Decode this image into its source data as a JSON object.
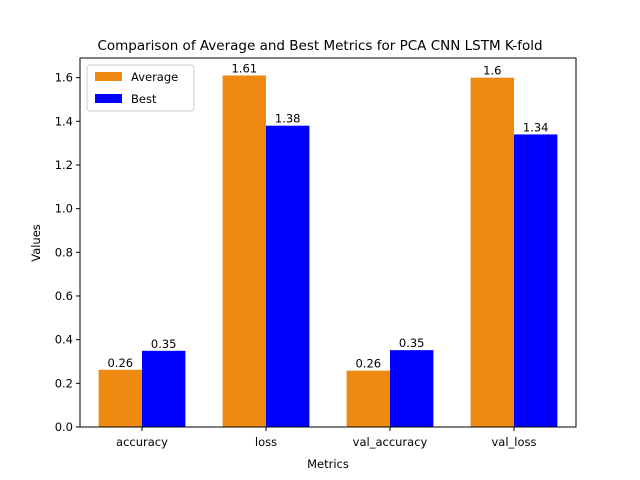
{
  "chart_data": {
    "type": "bar",
    "title": "Comparison of Average and Best Metrics for PCA CNN LSTM K-fold",
    "xlabel": "Metrics",
    "ylabel": "Values",
    "categories": [
      "accuracy",
      "loss",
      "val_accuracy",
      "val_loss"
    ],
    "series": [
      {
        "name": "Average",
        "color": "#ee8a12",
        "values": [
          0.262,
          1.61,
          0.258,
          1.6
        ],
        "labels": [
          "0.26",
          "1.61",
          "0.26",
          "1.6"
        ]
      },
      {
        "name": "Best",
        "color": "#0000ff",
        "values": [
          0.349,
          1.38,
          0.352,
          1.34
        ],
        "labels": [
          "0.35",
          "1.38",
          "0.35",
          "1.34"
        ]
      }
    ],
    "ylim": [
      0,
      1.69
    ],
    "yticks": [
      0.0,
      0.2,
      0.4,
      0.6,
      0.8,
      1.0,
      1.2,
      1.4,
      1.6
    ],
    "ytick_labels": [
      "0.0",
      "0.2",
      "0.4",
      "0.6",
      "0.8",
      "1.0",
      "1.2",
      "1.4",
      "1.6"
    ],
    "grid": false,
    "legend_position": "top-left"
  }
}
